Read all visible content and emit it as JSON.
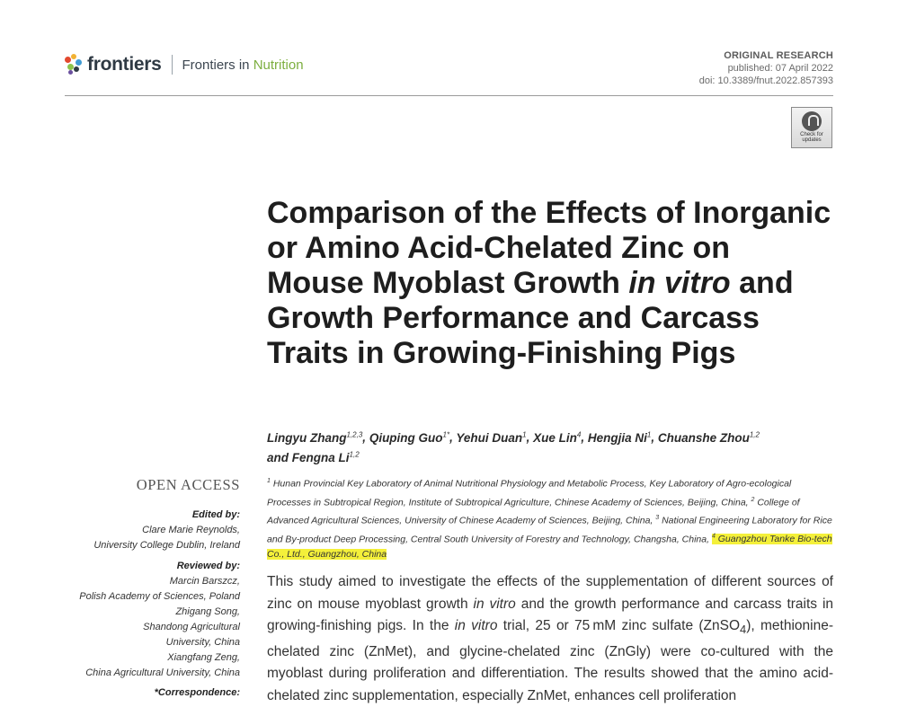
{
  "header": {
    "logo_text": "frontiers",
    "journal_prefix": "Frontiers in ",
    "journal_accent": "Nutrition",
    "article_type": "ORIGINAL RESEARCH",
    "published": "published: 07 April 2022",
    "doi": "doi: 10.3389/fnut.2022.857393",
    "check_updates_line1": "Check for",
    "check_updates_line2": "updates"
  },
  "colors": {
    "accent": "#7cae3f",
    "highlight": "#f4f03a",
    "logo_text": "#2f3a44"
  },
  "title": {
    "part1": "Comparison of the Effects of Inorganic or Amino Acid-Chelated Zinc on Mouse Myoblast Growth ",
    "italic": "in vitro",
    "part2": " and Growth Performance and Carcass Traits in Growing-Finishing Pigs"
  },
  "authors": [
    {
      "name": "Lingyu Zhang",
      "sup": "1,2,3",
      "sep": ", "
    },
    {
      "name": "Qiuping Guo",
      "sup": "1*",
      "sep": ", "
    },
    {
      "name": "Yehui Duan",
      "sup": "1",
      "sep": ", "
    },
    {
      "name": "Xue Lin",
      "sup": "4",
      "sep": ", "
    },
    {
      "name": "Hengjia Ni",
      "sup": "1",
      "sep": ", "
    },
    {
      "name": "Chuanshe Zhou",
      "sup": "1,2",
      "sep": " "
    },
    {
      "name": "and Fengna Li",
      "sup": "1,2",
      "sep": ""
    }
  ],
  "affiliations": {
    "a1_sup": "1",
    "a1": " Hunan Provincial Key Laboratory of Animal Nutritional Physiology and Metabolic Process, Key Laboratory of Agro-ecological Processes in Subtropical Region, Institute of Subtropical Agriculture, Chinese Academy of Sciences, Beijing, China, ",
    "a2_sup": "2",
    "a2": " College of Advanced Agricultural Sciences, University of Chinese Academy of Sciences, Beijing, China, ",
    "a3_sup": "3",
    "a3": " National Engineering Laboratory for Rice and By-product Deep Processing, Central South University of Forestry and Technology, Changsha, China, ",
    "a4_sup": "4",
    "a4": " Guangzhou Tanke Bio-tech Co., Ltd., Guangzhou, China"
  },
  "abstract": {
    "t1": "This study aimed to investigate the effects of the supplementation of different sources of zinc on mouse myoblast growth ",
    "i1": "in vitro",
    "t2": " and the growth performance and carcass traits in growing-finishing pigs. In the ",
    "i2": "in vitro",
    "t3": " trial, 25 or 75 mM zinc sulfate (ZnSO",
    "sub": "4",
    "t4": "), methionine-chelated zinc (ZnMet), and glycine-chelated zinc (ZnGly) were co-cultured with the myoblast during proliferation and differentiation. The results showed that the amino acid-chelated zinc supplementation, especially ZnMet, enhances cell proliferation"
  },
  "sidebar": {
    "open_access": "OPEN ACCESS",
    "edited_by_heading": "Edited by:",
    "edited_by": [
      "Clare Marie Reynolds,",
      "University College Dublin, Ireland"
    ],
    "reviewed_by_heading": "Reviewed by:",
    "reviewed_by": [
      "Marcin Barszcz,",
      "Polish Academy of Sciences, Poland",
      "Zhigang Song,",
      "Shandong Agricultural",
      "University, China",
      "Xiangfang Zeng,",
      "China Agricultural University, China"
    ],
    "correspondence_heading": "*Correspondence:"
  }
}
